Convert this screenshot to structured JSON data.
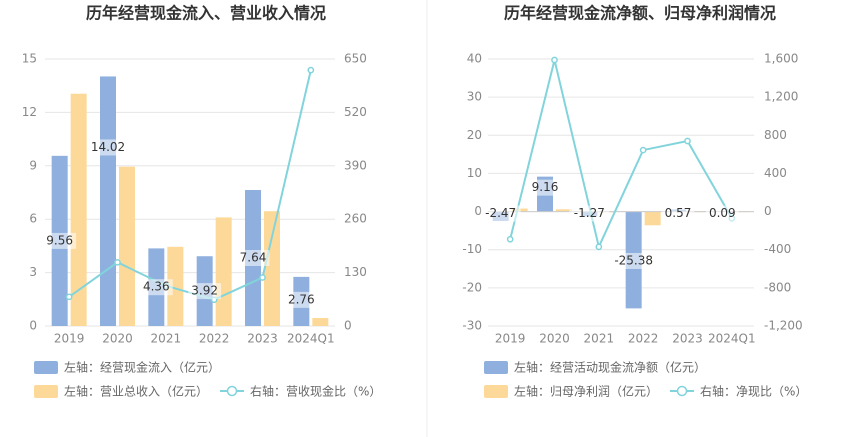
{
  "chart_data": [
    {
      "type": "bar",
      "title": "历年经营现金流入、营业收入情况",
      "categories": [
        "2019",
        "2020",
        "2021",
        "2022",
        "2023",
        "2024Q1"
      ],
      "left_axis": {
        "ylim": [
          0,
          15
        ],
        "ticks": [
          "0",
          "3",
          "6",
          "9",
          "12",
          "15"
        ]
      },
      "right_axis": {
        "ylim": [
          0,
          650
        ],
        "ticks": [
          "0",
          "130",
          "260",
          "390",
          "520",
          "650"
        ]
      },
      "series": [
        {
          "name": "左轴：经营现金流入（亿元）",
          "type": "bar",
          "axis": "left",
          "color": "#8fb0de",
          "values": [
            9.56,
            14.02,
            4.36,
            3.92,
            7.64,
            2.76
          ],
          "labels": [
            "9.56",
            "14.02",
            "4.36",
            "3.92",
            "7.64",
            "2.76"
          ]
        },
        {
          "name": "左轴：营业总收入（亿元）",
          "type": "bar",
          "axis": "left",
          "color": "#fdd999",
          "values": [
            13.05,
            8.95,
            4.45,
            6.1,
            6.45,
            0.45
          ]
        },
        {
          "name": "右轴：营收现金比（%）",
          "type": "line",
          "axis": "right",
          "color": "#82d4dc",
          "values": [
            71,
            155,
            98,
            64,
            118,
            623
          ]
        }
      ]
    },
    {
      "type": "bar",
      "title": "历年经营现金流净额、归母净利润情况",
      "categories": [
        "2019",
        "2020",
        "2021",
        "2022",
        "2023",
        "2024Q1"
      ],
      "left_axis": {
        "ylim": [
          -30,
          40
        ],
        "ticks": [
          "-30",
          "-20",
          "-10",
          "0",
          "10",
          "20",
          "30",
          "40"
        ]
      },
      "right_axis": {
        "ylim": [
          -1200,
          1600
        ],
        "ticks": [
          "-1,200",
          "-800",
          "-400",
          "0",
          "400",
          "800",
          "1,200",
          "1,600"
        ]
      },
      "series": [
        {
          "name": "左轴：经营活动现金流净额（亿元）",
          "type": "bar",
          "axis": "left",
          "color": "#8fb0de",
          "values": [
            -2.47,
            9.16,
            -1.27,
            -25.38,
            0.57,
            0.09
          ],
          "labels": [
            "-2.47",
            "9.16",
            "-1.27",
            "-25.38",
            "0.57",
            "0.09"
          ]
        },
        {
          "name": "左轴：归母净利润（亿元）",
          "type": "bar",
          "axis": "left",
          "color": "#fdd999",
          "values": [
            0.8,
            0.6,
            -0.2,
            -3.6,
            0.0,
            0.0
          ]
        },
        {
          "name": "右轴：净现比（%）",
          "type": "line",
          "axis": "right",
          "color": "#82d4dc",
          "values": [
            -290,
            1590,
            -370,
            645,
            740,
            -70
          ]
        }
      ]
    }
  ]
}
